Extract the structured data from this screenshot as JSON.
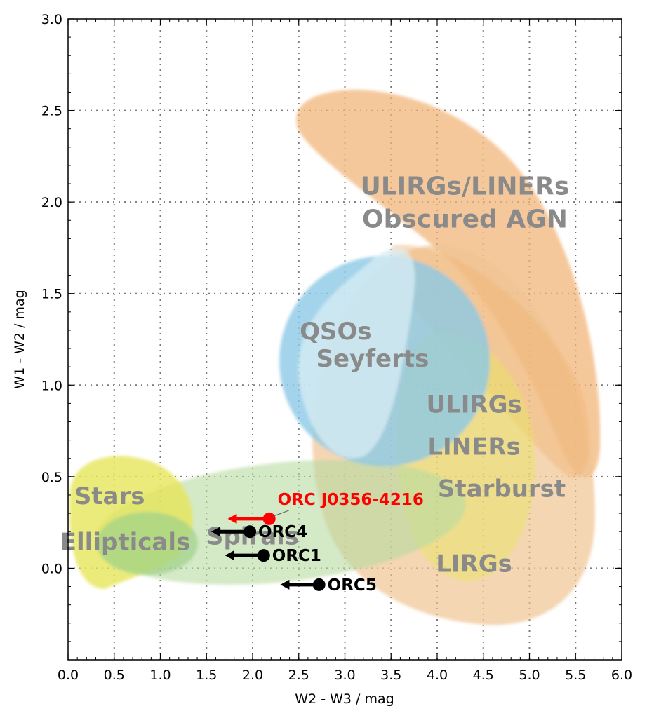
{
  "chart_data": {
    "type": "scatter",
    "xlabel": "W2 - W3 / mag",
    "ylabel": "W1 - W2 / mag",
    "xlim": [
      0.0,
      6.0
    ],
    "ylim": [
      -0.5,
      3.0
    ],
    "xticks": [
      "0.0",
      "0.5",
      "1.0",
      "1.5",
      "2.0",
      "2.5",
      "3.0",
      "3.5",
      "4.0",
      "4.5",
      "5.0",
      "5.5",
      "6.0"
    ],
    "yticks": [
      "0.0",
      "0.5",
      "1.0",
      "1.5",
      "2.0",
      "2.5",
      "3.0"
    ],
    "grid": true,
    "regions": [
      {
        "key": "stars",
        "label": "Stars",
        "color": "#e6e65a",
        "label_x": 0.45,
        "label_y": 0.35
      },
      {
        "key": "ellipticals",
        "label": "Ellipticals",
        "color": "#9fd28a",
        "label_x": 0.62,
        "label_y": 0.1
      },
      {
        "key": "spirals",
        "label": "Spirals",
        "color": "#b8dba0",
        "label_x": 2.0,
        "label_y": 0.13
      },
      {
        "key": "lirgs",
        "label": "LIRGs",
        "color": "#efc493",
        "label_x": 4.4,
        "label_y": -0.02
      },
      {
        "key": "starburst",
        "label": "Starburst",
        "color": "#e6e65a",
        "label_x": 4.7,
        "label_y": 0.39
      },
      {
        "key": "liners",
        "label": "LINERs",
        "color": "#e6e65a",
        "label_x": 4.4,
        "label_y": 0.62
      },
      {
        "key": "ulirgs",
        "label": "ULIRGs",
        "color": "#f1b57a",
        "label_x": 4.4,
        "label_y": 0.85
      },
      {
        "key": "seyferts",
        "label": "Seyferts",
        "color": "#cce8ee",
        "label_x": 3.3,
        "label_y": 1.1
      },
      {
        "key": "qsos",
        "label": "QSOs",
        "color": "#8cc9e6",
        "label_x": 2.9,
        "label_y": 1.25
      },
      {
        "key": "ulirgs_liners",
        "label": "ULIRGs/LINERs",
        "color": "#f1b57a",
        "label_x": 4.3,
        "label_y": 2.04
      },
      {
        "key": "obscured_agn",
        "label": "Obscured AGN",
        "color": "#f1b57a",
        "label_x": 4.3,
        "label_y": 1.86
      }
    ],
    "series": [
      {
        "name": "ORC J0356-4216",
        "x": 2.18,
        "y": 0.27,
        "limit_to_x": 1.73,
        "color": "#ff0000"
      },
      {
        "name": "ORC4",
        "x": 1.97,
        "y": 0.2,
        "limit_to_x": 1.55,
        "color": "#000000"
      },
      {
        "name": "ORC1",
        "x": 2.12,
        "y": 0.07,
        "limit_to_x": 1.7,
        "color": "#000000"
      },
      {
        "name": "ORC5",
        "x": 2.72,
        "y": -0.09,
        "limit_to_x": 2.3,
        "color": "#000000"
      }
    ]
  }
}
